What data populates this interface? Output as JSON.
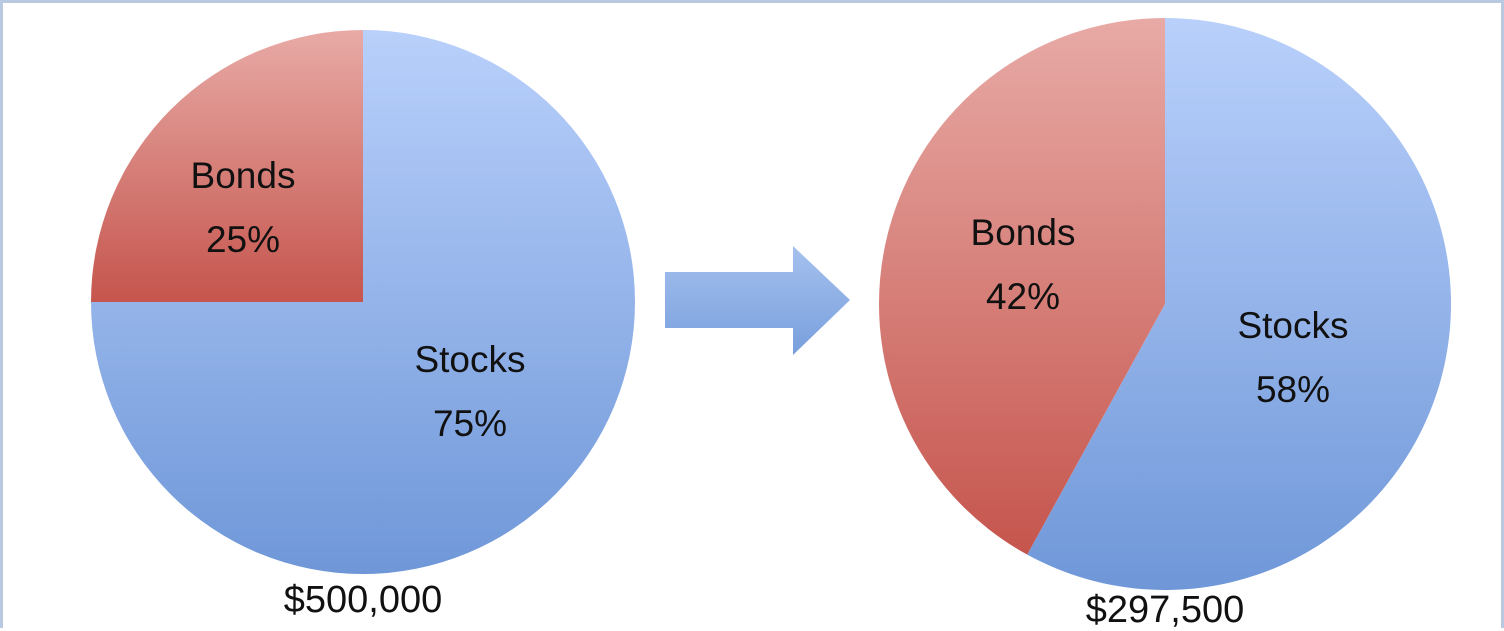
{
  "chart_data": [
    {
      "type": "pie",
      "categories": [
        "Stocks",
        "Bonds"
      ],
      "values": [
        75,
        25
      ],
      "labels": [
        [
          "Stocks",
          "75%"
        ],
        [
          "Bonds",
          "25%"
        ]
      ],
      "caption": "$500,000"
    },
    {
      "type": "pie",
      "categories": [
        "Stocks",
        "Bonds"
      ],
      "values": [
        58,
        42
      ],
      "labels": [
        [
          "Stocks",
          "58%"
        ],
        [
          "Bonds",
          "42%"
        ]
      ],
      "caption": "$297,500"
    }
  ],
  "arrow_icon": "right-arrow",
  "colors": {
    "stocks": "#8eb0e8",
    "bonds": "#d2716b",
    "arrow": "#8eb0e6",
    "frame": "#b9c9e2"
  }
}
